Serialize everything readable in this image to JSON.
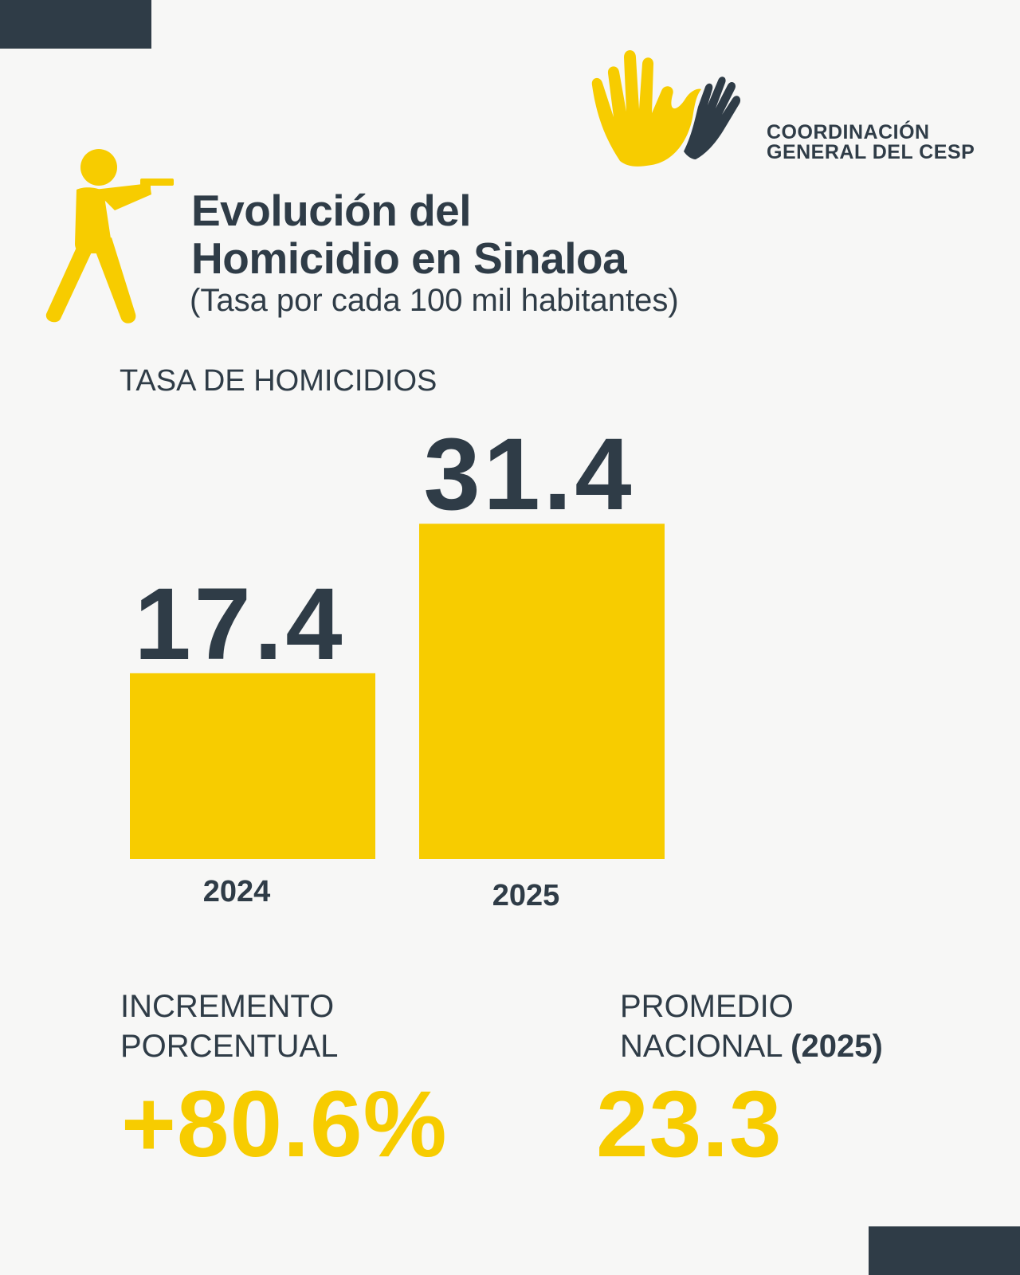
{
  "colors": {
    "dark": "#2f3c47",
    "accent": "#f7cc00",
    "background": "#f7f7f6"
  },
  "logo": {
    "name_line1": "COORDINACIÓN",
    "name_line2": "GENERAL DEL CESP",
    "icon": "hands-dove-icon"
  },
  "header": {
    "icon": "shooter-icon",
    "title_line1": "Evolución del",
    "title_line2": "Homicidio en Sinaloa",
    "subtitle": "(Tasa por cada 100 mil habitantes)"
  },
  "chart_data": {
    "type": "bar",
    "title": "TASA DE HOMICIDIOS",
    "categories": [
      "2024",
      "2025"
    ],
    "values": [
      17.4,
      31.4
    ],
    "value_labels": [
      "17.4",
      "31.4"
    ],
    "grid": false,
    "legend": "none"
  },
  "stats": {
    "increase": {
      "label_line1": "INCREMENTO",
      "label_line2": "PORCENTUAL",
      "value": "+80.6%"
    },
    "national": {
      "label_line1": "PROMEDIO",
      "label_line2": "NACIONAL",
      "label_year": "(2025)",
      "value": "23.3"
    }
  }
}
